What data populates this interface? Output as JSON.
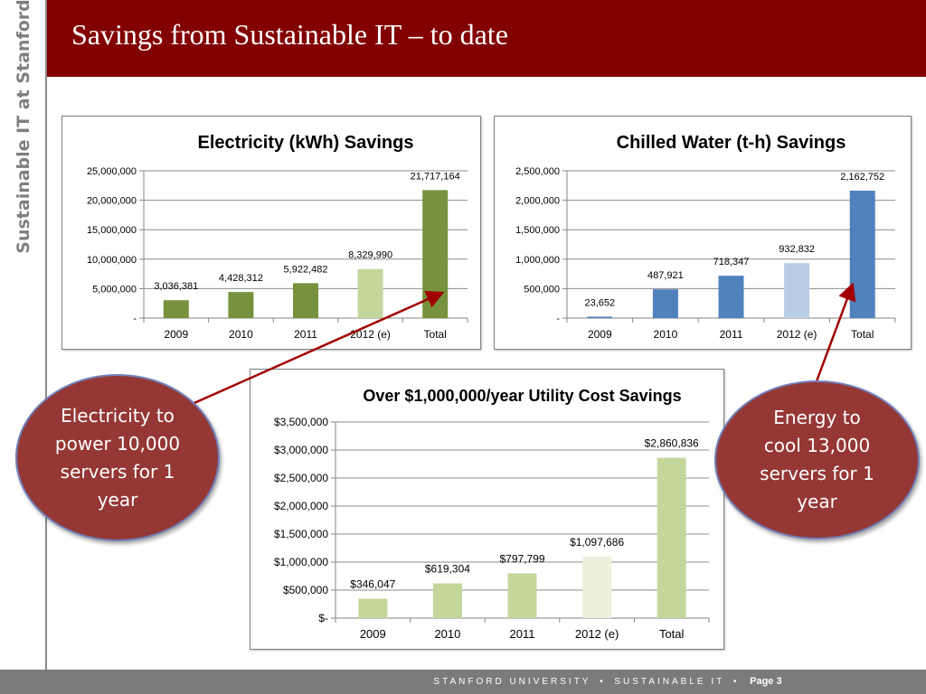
{
  "sidebar": {
    "title": "Sustainable IT at Stanford"
  },
  "header": {
    "title": "Savings from Sustainable IT – to date"
  },
  "footer": {
    "org": "STANFORD UNIVERSITY",
    "unit": "SUSTAINABLE IT",
    "page": "Page 3"
  },
  "callouts": {
    "electricity": "Electricity to power 10,000 servers for 1 year",
    "cooling": "Energy to cool 13,000 servers for 1 year"
  },
  "colors": {
    "header": "#820000",
    "green_dark": "#76923c",
    "green_light": "#c3d69b",
    "blue": "#4f81bd",
    "blue_light": "#b9cde5",
    "green_pale": "#c4d79b",
    "green_paler": "#ebf1de",
    "bubble": "#953735"
  },
  "chart_data": [
    {
      "type": "bar",
      "title": "Electricity (kWh) Savings",
      "categories": [
        "2009",
        "2010",
        "2011",
        "2012 (e)",
        "Total"
      ],
      "values": [
        3036381,
        4428312,
        5922482,
        8329990,
        21717164
      ],
      "value_labels": [
        "3,036,381",
        "4,428,312",
        "5,922,482",
        "8,329,990",
        "21,717,164"
      ],
      "ylim": [
        0,
        25000000
      ],
      "yticks": [
        0,
        5000000,
        10000000,
        15000000,
        20000000,
        25000000
      ],
      "ytick_labels": [
        "-",
        "5,000,000",
        "10,000,000",
        "15,000,000",
        "20,000,000",
        "25,000,000"
      ],
      "bar_colors": [
        "#76923c",
        "#76923c",
        "#76923c",
        "#c3d69b",
        "#76923c"
      ],
      "grid": true
    },
    {
      "type": "bar",
      "title": "Chilled Water (t-h) Savings",
      "categories": [
        "2009",
        "2010",
        "2011",
        "2012 (e)",
        "Total"
      ],
      "values": [
        23652,
        487921,
        718347,
        932832,
        2162752
      ],
      "value_labels": [
        "23,652",
        "487,921",
        "718,347",
        "932,832",
        "2,162,752"
      ],
      "ylim": [
        0,
        2500000
      ],
      "yticks": [
        0,
        500000,
        1000000,
        1500000,
        2000000,
        2500000
      ],
      "ytick_labels": [
        "-",
        "500,000",
        "1,000,000",
        "1,500,000",
        "2,000,000",
        "2,500,000"
      ],
      "bar_colors": [
        "#4f81bd",
        "#4f81bd",
        "#4f81bd",
        "#b9cde5",
        "#4f81bd"
      ],
      "grid": true
    },
    {
      "type": "bar",
      "title": "Over $1,000,000/year Utility Cost Savings",
      "categories": [
        "2009",
        "2010",
        "2011",
        "2012 (e)",
        "Total"
      ],
      "values": [
        346047,
        619304,
        797799,
        1097686,
        2860836
      ],
      "value_labels": [
        "$346,047",
        "$619,304",
        "$797,799",
        "$1,097,686",
        "$2,860,836"
      ],
      "ylim": [
        0,
        3500000
      ],
      "yticks": [
        0,
        500000,
        1000000,
        1500000,
        2000000,
        2500000,
        3000000,
        3500000
      ],
      "ytick_labels": [
        "$-",
        "$500,000",
        "$1,000,000",
        "$1,500,000",
        "$2,000,000",
        "$2,500,000",
        "$3,000,000",
        "$3,500,000"
      ],
      "bar_colors": [
        "#c4d79b",
        "#c4d79b",
        "#c4d79b",
        "#ebf1de",
        "#c4d79b"
      ],
      "grid": true
    }
  ]
}
